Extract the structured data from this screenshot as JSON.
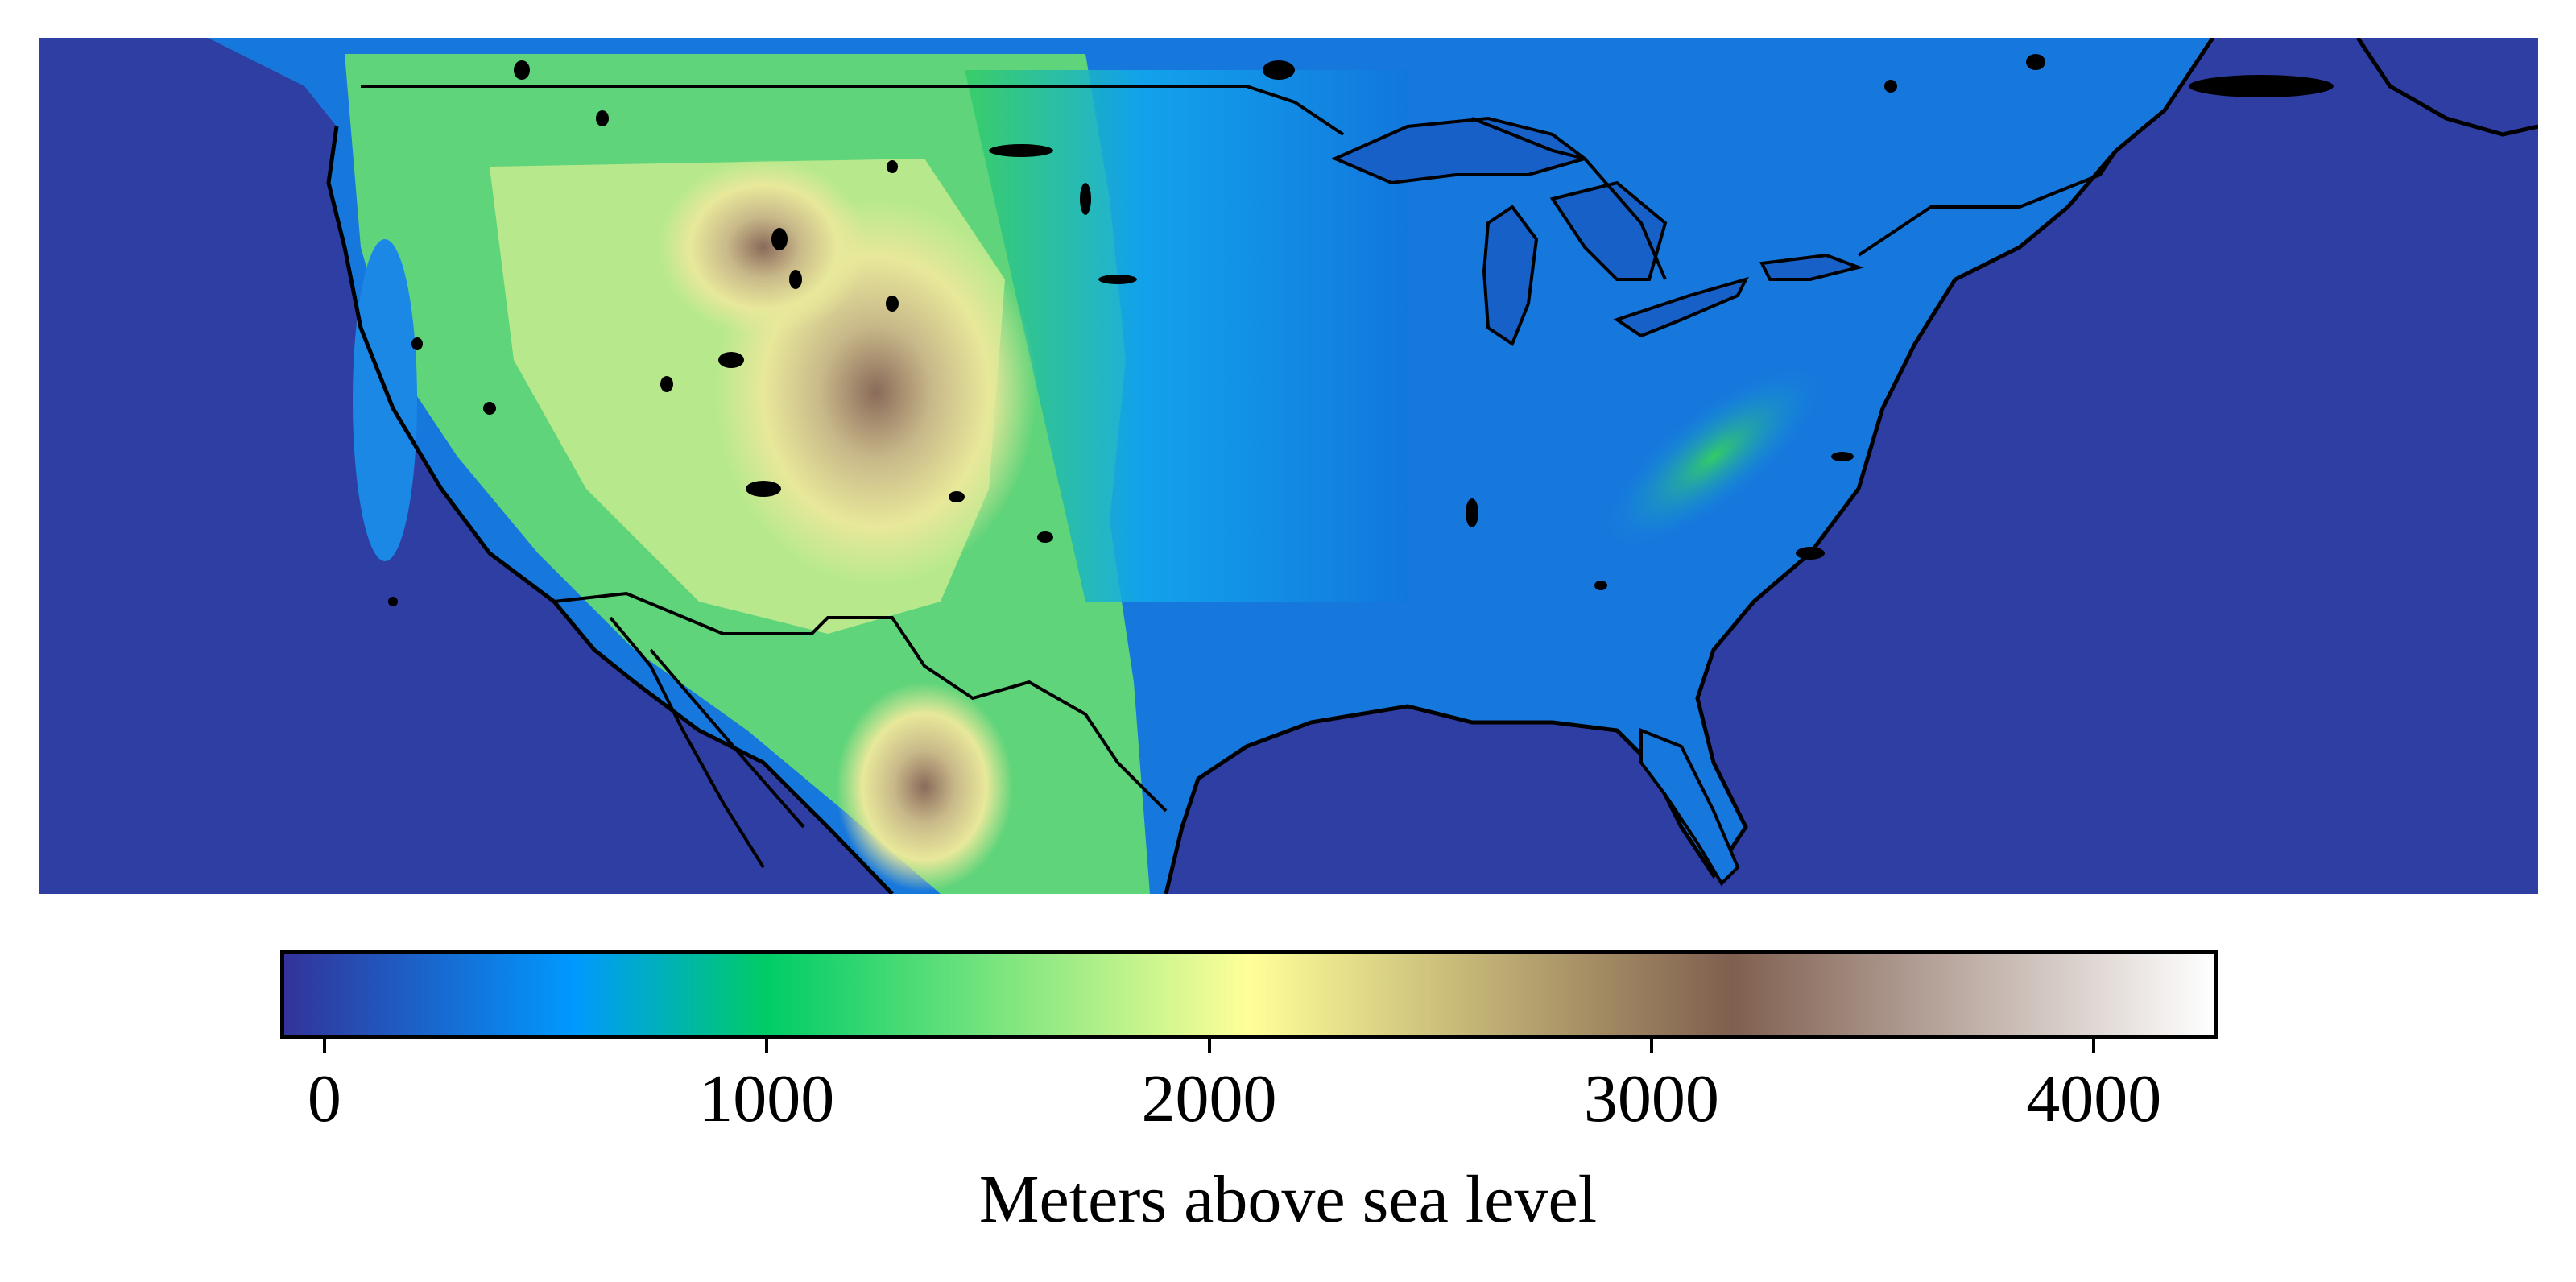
{
  "map": {
    "type": "elevation-raster",
    "region": "Contiguous United States with parts of Canada and Mexico",
    "colormap": "terrain",
    "borders": [
      "coastlines",
      "US-Canada border",
      "US-Mexico border",
      "Great Lakes",
      "lakes"
    ],
    "colors": {
      "ocean": "#2e3ea2",
      "border_line": "#000000"
    }
  },
  "colorbar": {
    "label": "Meters above sea level",
    "min": -100,
    "max": 4280,
    "ticks": [
      {
        "value": 0,
        "label": "0"
      },
      {
        "value": 1000,
        "label": "1000"
      },
      {
        "value": 2000,
        "label": "2000"
      },
      {
        "value": 3000,
        "label": "3000"
      },
      {
        "value": 4000,
        "label": "4000"
      }
    ],
    "gradient_stops": [
      {
        "pos": 0.0,
        "color": "#333399"
      },
      {
        "pos": 0.15,
        "color": "#0099ff"
      },
      {
        "pos": 0.25,
        "color": "#00cc66"
      },
      {
        "pos": 0.5,
        "color": "#ffff99"
      },
      {
        "pos": 0.75,
        "color": "#7f5f4f"
      },
      {
        "pos": 1.0,
        "color": "#ffffff"
      }
    ]
  }
}
